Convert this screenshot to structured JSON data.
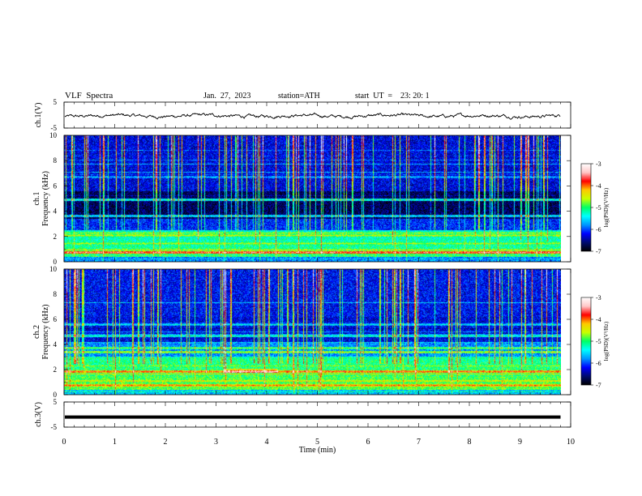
{
  "header": {
    "title": "VLF  Spectra",
    "date": "Jan.  27,  2023",
    "station": "station=ATH",
    "start": "start  UT  =    23: 20: 1"
  },
  "chart_data": [
    {
      "type": "line",
      "ylabel": "ch.1(V)",
      "ylim": [
        -5,
        5
      ],
      "yticks": [
        "5",
        "-5"
      ],
      "baseline": 0,
      "description_values": {
        "mean_level": -0.2,
        "amplitude": 0.6
      },
      "xlim": [
        0,
        10
      ]
    },
    {
      "type": "heatmap",
      "ylabel_lines": [
        "ch.1",
        "Frequency  (kHz)"
      ],
      "ylim": [
        0,
        10
      ],
      "yticks": [
        "0",
        "2",
        "4",
        "6",
        "8",
        "10"
      ],
      "xlim": [
        0,
        9.8
      ],
      "colorbar": {
        "label": "log(PSD)(V²/Hz)",
        "ticks": [
          "-3",
          "-4",
          "-5",
          "-6",
          "-7"
        ],
        "range": [
          -7,
          -3
        ]
      }
    },
    {
      "type": "heatmap",
      "ylabel_lines": [
        "ch.2",
        "Frequency  (kHz)"
      ],
      "ylim": [
        0,
        10
      ],
      "yticks": [
        "0",
        "2",
        "4",
        "6",
        "8",
        "10"
      ],
      "xlim": [
        0,
        9.8
      ],
      "colorbar": {
        "label": "log(PSD)(V²/Hz)",
        "ticks": [
          "-3",
          "-4",
          "-5",
          "-6",
          "-7"
        ],
        "range": [
          -7,
          -3
        ]
      }
    },
    {
      "type": "line",
      "ylabel": "ch.3(V)",
      "ylim": [
        -5,
        5
      ],
      "yticks": [
        "5",
        "-5"
      ],
      "baseline": -1,
      "xlim": [
        0,
        10
      ]
    }
  ],
  "xaxis": {
    "label": "Time  (min)",
    "ticks": [
      "0",
      "1",
      "2",
      "3",
      "4",
      "5",
      "6",
      "7",
      "8",
      "9",
      "10"
    ],
    "xlim": [
      0,
      10
    ]
  },
  "colors": {
    "jet": [
      "#000000",
      "#000a6e",
      "#0000ff",
      "#0096ff",
      "#00ffff",
      "#00ff64",
      "#c8ff00",
      "#ffc800",
      "#ff0000",
      "#ffc8c8",
      "#ffffff"
    ]
  }
}
